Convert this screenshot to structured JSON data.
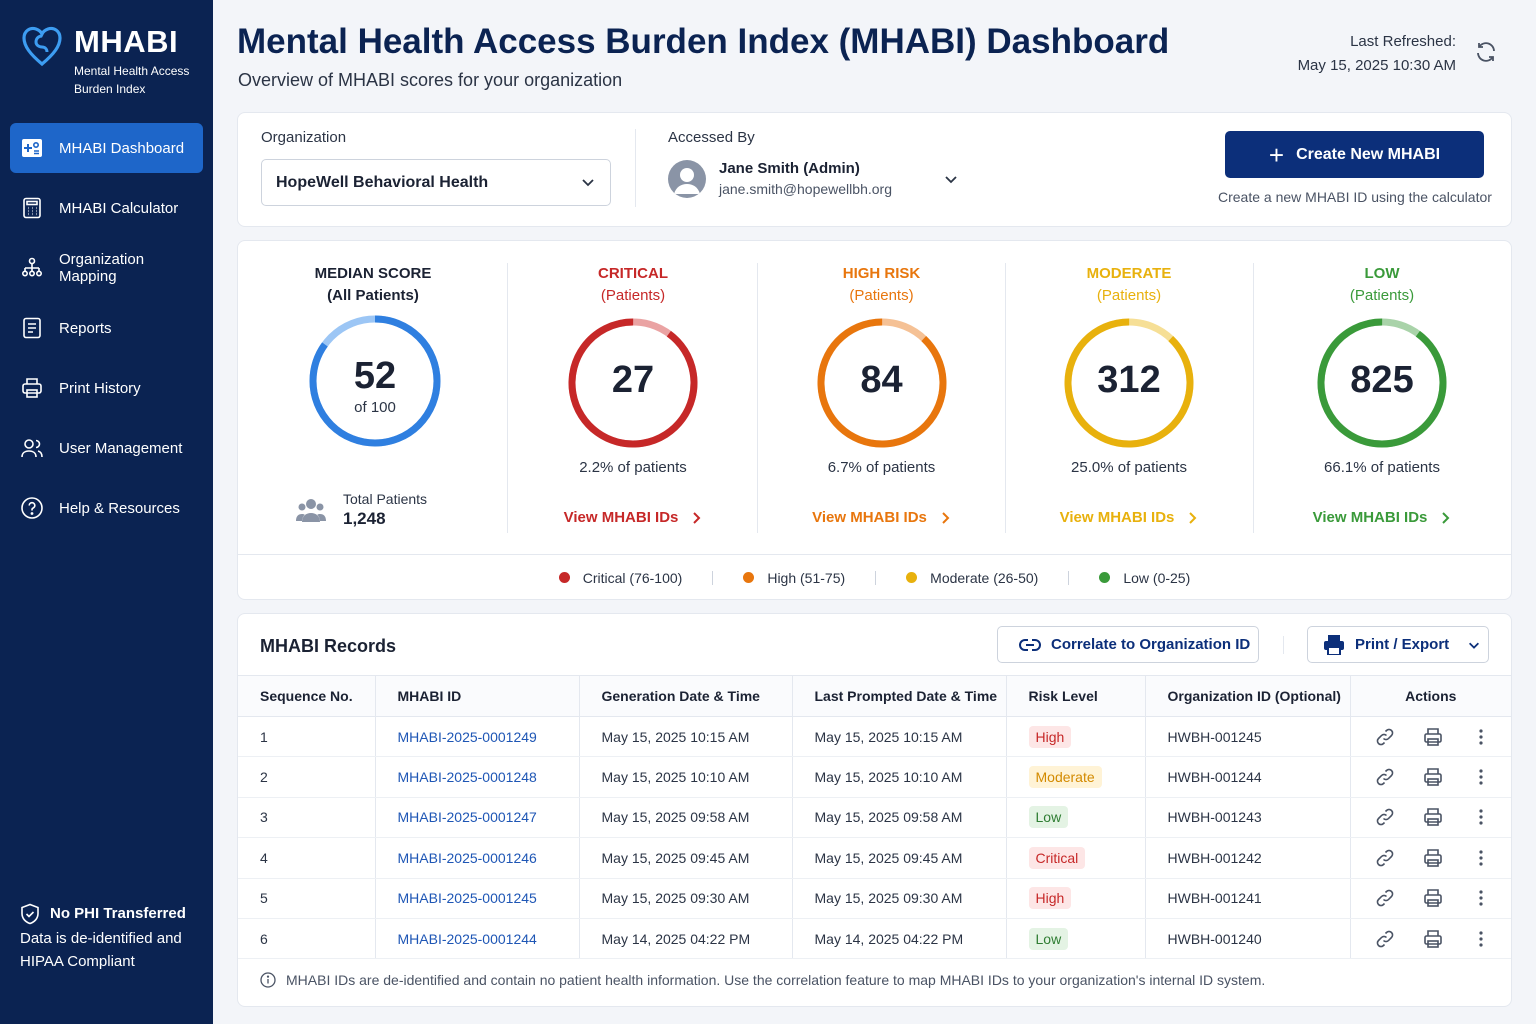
{
  "brand": {
    "name": "MHABI",
    "subtitle": "Mental Health Access Burden Index"
  },
  "nav": [
    {
      "label": "MHABI Dashboard",
      "icon": "dashboard-icon",
      "active": true
    },
    {
      "label": "MHABI Calculator",
      "icon": "calculator-icon"
    },
    {
      "label": "Organization Mapping",
      "icon": "org-mapping-icon"
    },
    {
      "label": "Reports",
      "icon": "reports-icon"
    },
    {
      "label": "Print History",
      "icon": "printer-icon"
    },
    {
      "label": "User Management",
      "icon": "users-icon"
    },
    {
      "label": "Help & Resources",
      "icon": "help-icon"
    }
  ],
  "sidebar_footer": {
    "title": "No PHI Transferred",
    "text": "Data is de-identified and HIPAA Compliant"
  },
  "header": {
    "title": "Mental Health Access Burden Index (MHABI) Dashboard",
    "subtitle": "Overview of MHABI scores for your organization",
    "refreshed_label": "Last Refreshed:",
    "refreshed_value": "May 15, 2025 10:30 AM"
  },
  "org": {
    "label": "Organization",
    "value": "HopeWell Behavioral Health"
  },
  "accessed": {
    "label": "Accessed By",
    "name": "Jane Smith (Admin)",
    "email": "jane.smith@hopewellbh.org"
  },
  "create": {
    "label": "Create New MHABI",
    "hint": "Create a new MHABI ID using the calculator"
  },
  "median": {
    "title": "MEDIAN SCORE",
    "subtitle": "(All Patients)",
    "value": "52",
    "of": "of 100",
    "fraction": 0.52,
    "color": "#2f7fe0",
    "total_label": "Total Patients",
    "total_value": "1,248"
  },
  "categories": [
    {
      "title": "CRITICAL",
      "subtitle": "(Patients)",
      "value": "27",
      "pct": "2.2% of patients",
      "link": "View MHABI IDs",
      "color": "#c62828",
      "light": "#eaa3a3",
      "fraction": 0.9
    },
    {
      "title": "HIGH RISK",
      "subtitle": "(Patients)",
      "value": "84",
      "pct": "6.7% of patients",
      "link": "View MHABI IDs",
      "color": "#e8760d",
      "light": "#f5c195",
      "fraction": 0.88
    },
    {
      "title": "MODERATE",
      "subtitle": "(Patients)",
      "value": "312",
      "pct": "25.0% of patients",
      "link": "View MHABI IDs",
      "color": "#e8b10d",
      "light": "#f6df96",
      "fraction": 0.88
    },
    {
      "title": "LOW",
      "subtitle": "(Patients)",
      "value": "825",
      "pct": "66.1% of patients",
      "link": "View MHABI IDs",
      "color": "#3a9a3a",
      "light": "#a9d3a9",
      "fraction": 0.9
    }
  ],
  "legend": [
    {
      "label": "Critical (76-100)",
      "color": "#c62828"
    },
    {
      "label": "High (51-75)",
      "color": "#e8760d"
    },
    {
      "label": "Moderate (26-50)",
      "color": "#e8b10d"
    },
    {
      "label": "Low (0-25)",
      "color": "#3a9a3a"
    }
  ],
  "records": {
    "title": "MHABI Records",
    "correlate_label": "Correlate to Organization ID",
    "print_label": "Print / Export",
    "columns": [
      "Sequence No.",
      "MHABI ID",
      "Generation Date & Time",
      "Last Prompted Date & Time",
      "Risk Level",
      "Organization ID (Optional)",
      "Actions"
    ],
    "rows": [
      {
        "seq": "1",
        "id": "MHABI-2025-0001249",
        "gen": "May 15, 2025 10:15 AM",
        "last": "May 15, 2025 10:15 AM",
        "risk": "High",
        "org": "HWBH-001245"
      },
      {
        "seq": "2",
        "id": "MHABI-2025-0001248",
        "gen": "May 15, 2025 10:10 AM",
        "last": "May 15, 2025 10:10 AM",
        "risk": "Moderate",
        "org": "HWBH-001244"
      },
      {
        "seq": "3",
        "id": "MHABI-2025-0001247",
        "gen": "May 15, 2025 09:58 AM",
        "last": "May 15, 2025 09:58 AM",
        "risk": "Low",
        "org": "HWBH-001243"
      },
      {
        "seq": "4",
        "id": "MHABI-2025-0001246",
        "gen": "May 15, 2025 09:45 AM",
        "last": "May 15, 2025 09:45 AM",
        "risk": "Critical",
        "org": "HWBH-001242"
      },
      {
        "seq": "5",
        "id": "MHABI-2025-0001245",
        "gen": "May 15, 2025 09:30 AM",
        "last": "May 15, 2025 09:30 AM",
        "risk": "High",
        "org": "HWBH-001241"
      },
      {
        "seq": "6",
        "id": "MHABI-2025-0001244",
        "gen": "May 14, 2025 04:22 PM",
        "last": "May 14, 2025 04:22 PM",
        "risk": "Low",
        "org": "HWBH-001240"
      }
    ],
    "note": "MHABI IDs are de-identified and contain no patient health information. Use the correlation feature to map MHABI IDs to your organization's internal ID system."
  }
}
